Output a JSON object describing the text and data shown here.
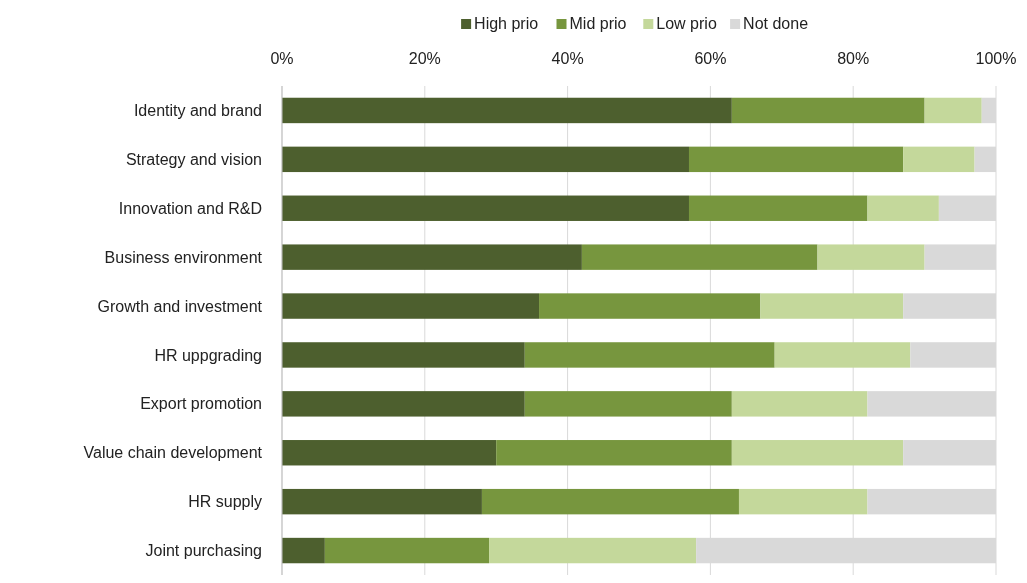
{
  "chart_data": {
    "type": "bar",
    "orientation": "horizontal",
    "stacked": true,
    "categories": [
      "Identity and brand",
      "Strategy and vision",
      "Innovation and R&D",
      "Business environment",
      "Growth and investment",
      "HR uppgrading",
      "Export promotion",
      "Value chain development",
      "HR supply",
      "Joint purchasing"
    ],
    "series": [
      {
        "name": "High prio",
        "color": "#4d5f2e",
        "values": [
          63,
          57,
          57,
          42,
          36,
          34,
          34,
          30,
          28,
          6
        ]
      },
      {
        "name": "Mid prio",
        "color": "#77963e",
        "values": [
          27,
          30,
          25,
          33,
          31,
          35,
          29,
          33,
          36,
          23
        ]
      },
      {
        "name": "Low prio",
        "color": "#c4d89b",
        "values": [
          8,
          10,
          10,
          15,
          20,
          19,
          19,
          24,
          18,
          29
        ]
      },
      {
        "name": "Not done",
        "color": "#d9d9d9",
        "values": [
          2,
          3,
          8,
          10,
          13,
          12,
          18,
          13,
          18,
          42
        ]
      }
    ],
    "xlim": [
      0,
      100
    ],
    "xticks": [
      {
        "value": 0,
        "label": "0%"
      },
      {
        "value": 20,
        "label": "20%"
      },
      {
        "value": 40,
        "label": "40%"
      },
      {
        "value": 60,
        "label": "60%"
      },
      {
        "value": 80,
        "label": "80%"
      },
      {
        "value": 100,
        "label": "100%"
      }
    ],
    "grid": "x",
    "legend": "top"
  }
}
